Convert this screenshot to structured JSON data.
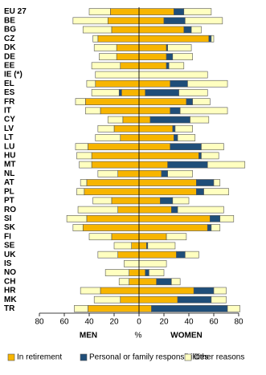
{
  "chart_data": {
    "type": "butterfly",
    "categories": [
      "EU 27",
      "BE",
      "BG",
      "CZ",
      "DK",
      "DE",
      "EE",
      "IE (*)",
      "EL",
      "ES",
      "FR",
      "IT",
      "CY",
      "LV",
      "LT",
      "LU",
      "HU",
      "MT",
      "NL",
      "AT",
      "PL",
      "PT",
      "RO",
      "SI",
      "SK",
      "FI",
      "SE",
      "UK",
      "IS",
      "NO",
      "CH",
      "HR",
      "MK",
      "TR"
    ],
    "xlim": [
      -80,
      80
    ],
    "xticks": [
      {
        "value": -80,
        "label": "80"
      },
      {
        "value": -60,
        "label": "60"
      },
      {
        "value": -40,
        "label": "40"
      },
      {
        "value": -20,
        "label": "20"
      },
      0,
      20,
      40,
      60,
      80
    ],
    "x_label": "%",
    "groups": [
      {
        "name": "MEN",
        "side": "left",
        "series": [
          {
            "name": "In retirement",
            "color": "#f7b500",
            "values": [
              23,
              25,
              22,
              33,
              18,
              18,
              15,
              0,
              35,
              14,
              43,
              31,
              13,
              20,
              15,
              41,
              38,
              38,
              17,
              42,
              44,
              22,
              17,
              42,
              45,
              22,
              6,
              17,
              0,
              8,
              8,
              31,
              15,
              41
            ]
          },
          {
            "name": "Personal or family responsibilities",
            "color": "#1f4e79",
            "values": [
              0,
              0,
              0,
              0,
              0,
              0,
              0,
              0,
              0,
              2,
              0,
              0,
              0,
              0,
              0,
              0,
              0,
              0,
              0,
              0,
              0,
              0,
              0,
              0,
              0,
              0,
              0,
              0,
              0,
              0,
              0,
              0,
              0,
              0
            ]
          },
          {
            "name": "Other reasons",
            "color": "#ffffc0",
            "values": [
              17,
              28,
              23,
              4,
              18,
              14,
              23,
              35,
              7,
              22,
              8,
              12,
              12,
              13,
              20,
              10,
              12,
              10,
              16,
              5,
              6,
              15,
              32,
              16,
              8,
              18,
              14,
              16,
              12,
              19,
              8,
              16,
              21,
              11
            ]
          }
        ]
      },
      {
        "name": "WOMEN",
        "side": "right",
        "series": [
          {
            "name": "In retirement",
            "color": "#f7b500",
            "values": [
              28,
              20,
              36,
              56,
              22,
              22,
              22,
              0,
              25,
              5,
              38,
              25,
              9,
              27,
              28,
              25,
              48,
              23,
              18,
              46,
              46,
              17,
              26,
              57,
              55,
              22,
              6,
              30,
              0,
              5,
              14,
              44,
              31,
              10
            ]
          },
          {
            "name": "Personal or family responsibilities",
            "color": "#1f4e79",
            "values": [
              8,
              17,
              6,
              2,
              1,
              5,
              2,
              0,
              14,
              27,
              5,
              8,
              32,
              2,
              3,
              25,
              2,
              32,
              5,
              14,
              6,
              10,
              5,
              8,
              3,
              0,
              1,
              7,
              0,
              3,
              12,
              16,
              27,
              61
            ]
          },
          {
            "name": "Other reasons",
            "color": "#ffffc0",
            "values": [
              22,
              30,
              8,
              2,
              19,
              16,
              12,
              55,
              32,
              23,
              14,
              38,
              15,
              14,
              14,
              18,
              14,
              30,
              20,
              5,
              20,
              13,
              37,
              11,
              7,
              16,
              22,
              11,
              22,
              12,
              7,
              10,
              12,
              10
            ]
          }
        ]
      }
    ]
  }
}
